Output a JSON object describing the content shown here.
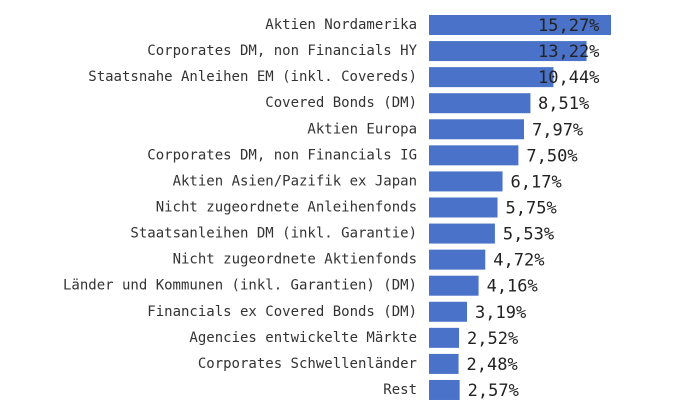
{
  "chart_data": {
    "type": "bar",
    "orientation": "horizontal",
    "categories": [
      "Aktien Nordamerika",
      "Corporates DM, non Financials HY",
      "Staatsnahe Anleihen EM (inkl. Covereds)",
      "Covered Bonds (DM)",
      "Aktien Europa",
      "Corporates DM, non Financials IG",
      "Aktien Asien/Pazifik ex Japan",
      "Nicht zugeordnete Anleihenfonds",
      "Staatsanleihen DM (inkl. Garantie)",
      "Nicht zugeordnete Aktienfonds",
      "Länder und Kommunen (inkl. Garantien) (DM)",
      "Financials ex Covered Bonds (DM)",
      "Agencies entwickelte Märkte",
      "Corporates Schwellenländer",
      "Rest"
    ],
    "values": [
      15.27,
      13.22,
      10.44,
      8.51,
      7.97,
      7.5,
      6.17,
      5.75,
      5.53,
      4.72,
      4.16,
      3.19,
      2.52,
      2.48,
      2.57
    ],
    "value_labels": [
      "15,27%",
      "13,22%",
      "10,44%",
      "8,51%",
      "7,97%",
      "7,50%",
      "6,17%",
      "5,75%",
      "5,53%",
      "4,72%",
      "4,16%",
      "3,19%",
      "2,52%",
      "2,48%",
      "2,57%"
    ],
    "color": "#4a72c9"
  }
}
